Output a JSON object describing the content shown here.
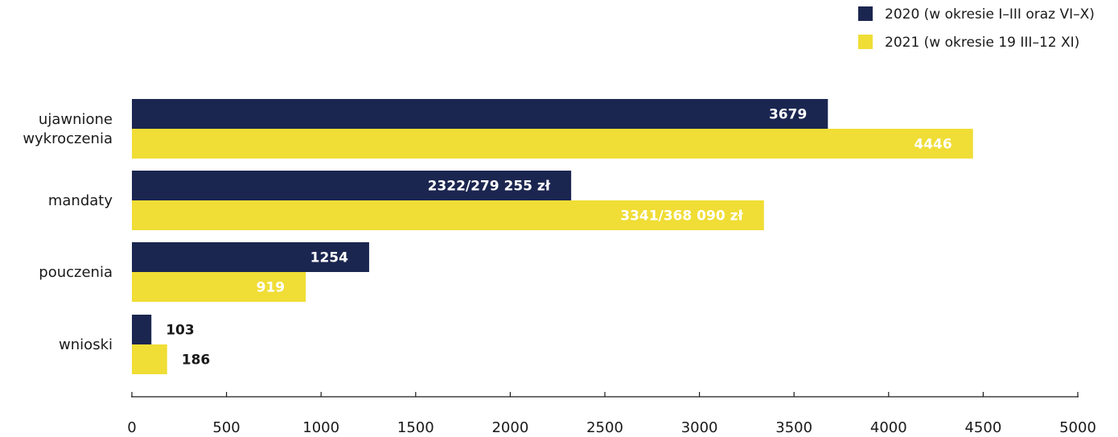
{
  "chart_data": {
    "type": "bar",
    "orientation": "horizontal",
    "categories": [
      [
        "ujawnione",
        "wykroczenia"
      ],
      [
        "mandaty"
      ],
      [
        "pouczenia"
      ],
      [
        "wnioski"
      ]
    ],
    "series": [
      {
        "name": "2020 (w okresie I–III oraz VI–X)",
        "color": "#1b2650",
        "values": [
          3679,
          2322,
          1254,
          103
        ],
        "labels": [
          "3679",
          "2322/279 255 zł",
          "1254",
          "103"
        ],
        "label_color": "#ffffff"
      },
      {
        "name": "2021 (w okresie 19 III–12 XI)",
        "color": "#f0dd35",
        "values": [
          4446,
          3341,
          919,
          186
        ],
        "labels": [
          "4446",
          "3341/368 090 zł",
          "919",
          "186"
        ],
        "label_color": "#ffffff"
      }
    ],
    "xlim": [
      0,
      5000
    ],
    "xticks": [
      0,
      500,
      1000,
      1500,
      2000,
      2500,
      3000,
      3500,
      4000,
      4500,
      5000
    ],
    "xtick_labels": [
      "0",
      "500",
      "1000",
      "1500",
      "2000",
      "2500",
      "3000",
      "3500",
      "4000",
      "4500",
      "5000"
    ],
    "grid": false,
    "legend_position": "top-right",
    "title": "",
    "xlabel": "",
    "ylabel": ""
  }
}
